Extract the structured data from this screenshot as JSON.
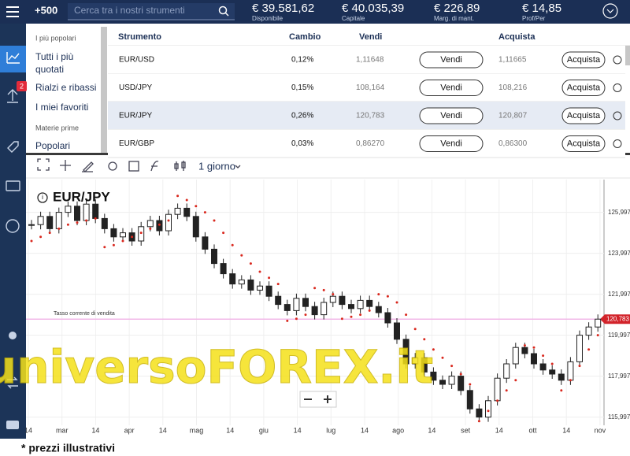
{
  "topbar": {
    "logo": "+500",
    "search_placeholder": "Cerca tra i nostri strumenti",
    "stats": [
      {
        "value": "€ 39.581,62",
        "label": "Disponibile"
      },
      {
        "value": "€ 40.035,39",
        "label": "Capitale"
      },
      {
        "value": "€ 226,89",
        "label": "Marg. di mant."
      },
      {
        "value": "€ 14,85",
        "label": "Prof/Per"
      }
    ]
  },
  "sidebar": {
    "badge": "2"
  },
  "menu": {
    "section1": "I più popolari",
    "items1": [
      "Tutti i più quotati",
      "Rialzi e ribassi",
      "I miei favoriti"
    ],
    "section2": "Materie prime",
    "items2": [
      "Popolari"
    ]
  },
  "table": {
    "headers": [
      "Strumento",
      "Cambio",
      "Vendi",
      "Acquista"
    ],
    "sell_button": "Vendi",
    "buy_button": "Acquista",
    "rows": [
      [
        "EUR/USD",
        "0,12%",
        "1,11648",
        "1,11665"
      ],
      [
        "USD/JPY",
        "0,15%",
        "108,164",
        "108,216"
      ],
      [
        "EUR/JPY",
        "0,26%",
        "120,783",
        "120,807"
      ],
      [
        "EUR/GBP",
        "0,03%",
        "0,86270",
        "0,86300"
      ]
    ]
  },
  "chart": {
    "interval": "1 giorno",
    "title": "EUR/JPY",
    "price_line_label": "Tasso corrente di vendita",
    "current_price": {
      "value": 120.783,
      "label": "120,783"
    },
    "ylim": [
      115.6,
      127.6
    ],
    "yticks": [
      {
        "value": 125.997,
        "label": "125,997"
      },
      {
        "value": 123.997,
        "label": "123,997"
      },
      {
        "value": 121.997,
        "label": "121,997"
      },
      {
        "value": 119.997,
        "label": "119,997"
      },
      {
        "value": 117.997,
        "label": "117,997"
      },
      {
        "value": 115.997,
        "label": "115,997"
      }
    ],
    "xlabels": [
      "14",
      "mar",
      "14",
      "apr",
      "14",
      "mag",
      "14",
      "giu",
      "14",
      "lug",
      "14",
      "ago",
      "14",
      "set",
      "14",
      "ott",
      "14",
      "nov"
    ],
    "closes": [
      125.4,
      125.8,
      125.2,
      126.0,
      126.3,
      125.6,
      126.4,
      125.7,
      125.2,
      124.8,
      125.0,
      124.6,
      125.3,
      125.6,
      125.1,
      125.9,
      126.2,
      125.8,
      124.8,
      124.2,
      123.5,
      123.0,
      122.5,
      122.7,
      122.2,
      122.4,
      121.9,
      121.5,
      121.2,
      121.8,
      121.4,
      121.0,
      121.6,
      121.9,
      121.5,
      121.3,
      121.7,
      121.4,
      121.1,
      120.6,
      119.8,
      118.6,
      118.9,
      118.2,
      117.8,
      117.6,
      118.0,
      117.3,
      116.4,
      116.0,
      116.8,
      117.9,
      118.6,
      119.4,
      119.1,
      118.6,
      118.3,
      118.1,
      117.8,
      118.7,
      120.0,
      120.4,
      120.783
    ],
    "sar": [
      124.6,
      124.8,
      125.0,
      125.2,
      125.4,
      125.5,
      125.6,
      125.7,
      124.3,
      124.4,
      124.6,
      124.8,
      125.0,
      125.2,
      125.4,
      125.6,
      126.8,
      126.6,
      126.3,
      126.0,
      125.6,
      125.0,
      124.4,
      123.9,
      123.5,
      123.1,
      122.8,
      122.5,
      120.7,
      120.8,
      121.0,
      122.3,
      122.2,
      122.0,
      120.8,
      120.9,
      121.0,
      121.2,
      122.0,
      121.9,
      121.6,
      121.0,
      120.3,
      119.8,
      119.3,
      118.9,
      118.5,
      118.1,
      117.6,
      115.8,
      116.3,
      116.8,
      117.3,
      117.8,
      119.5,
      119.4,
      119.0,
      118.6,
      117.3,
      117.8,
      118.5,
      119.3,
      120.0
    ]
  },
  "watermark": "universoFOREX.it",
  "footnote": "* prezzi illustrativi"
}
